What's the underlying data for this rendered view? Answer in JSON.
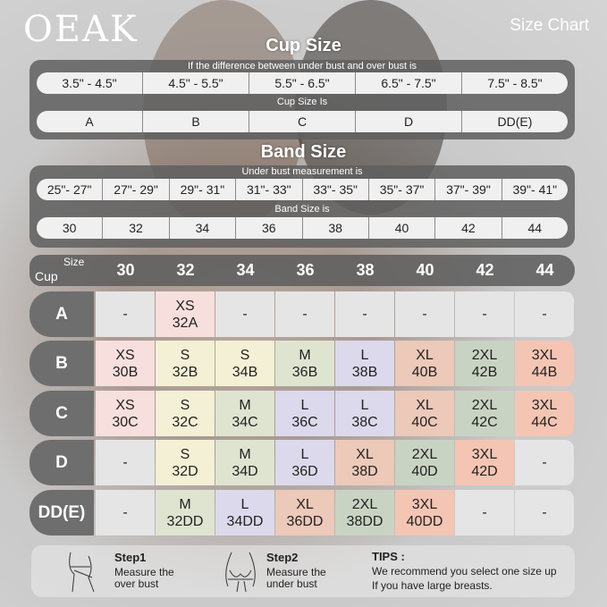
{
  "brand": "OEAK",
  "header_title": "Size Chart",
  "cup_section": {
    "title": "Cup Size",
    "difference_label": "If the  difference between under bust and over bust is",
    "differences": [
      "3.5\" -  4.5\"",
      "4.5\" -  5.5\"",
      "5.5\" -  6.5\"",
      "6.5\" -  7.5\"",
      "7.5\" -  8.5\""
    ],
    "cup_label": "Cup Size Is",
    "cups": [
      "A",
      "B",
      "C",
      "D",
      "DD(E)"
    ]
  },
  "band_section": {
    "title": "Band Size",
    "measurement_label": "Under bust measurement is",
    "measurements": [
      "25\"- 27\"",
      "27\"- 29\"",
      "29\"- 31\"",
      "31\"- 33\"",
      "33\"- 35\"",
      "35\"- 37\"",
      "37\"- 39\"",
      "39\"- 41\""
    ],
    "band_label": "Band Size is",
    "bands": [
      "30",
      "32",
      "34",
      "36",
      "38",
      "40",
      "42",
      "44"
    ]
  },
  "grid": {
    "corner_size": "Size",
    "corner_cup": "Cup",
    "columns": [
      "30",
      "32",
      "34",
      "36",
      "38",
      "40",
      "42",
      "44"
    ],
    "colors": {
      "XS": "#f6dfdd",
      "S": "#f4f0d5",
      "M": "#dfe4d1",
      "L": "#dcd9ec",
      "XL": "#ecc9b8",
      "2XL": "#c9d3c3",
      "3XL": "#f4c5b3",
      "-": "#e5e5e5"
    },
    "rows": [
      {
        "cup": "A",
        "cells": [
          [
            "-",
            ""
          ],
          [
            "XS",
            "32A"
          ],
          [
            "-",
            ""
          ],
          [
            "-",
            ""
          ],
          [
            "-",
            ""
          ],
          [
            "-",
            ""
          ],
          [
            "-",
            ""
          ],
          [
            "-",
            ""
          ]
        ]
      },
      {
        "cup": "B",
        "cells": [
          [
            "XS",
            "30B"
          ],
          [
            "S",
            "32B"
          ],
          [
            "S",
            "34B"
          ],
          [
            "M",
            "36B"
          ],
          [
            "L",
            "38B"
          ],
          [
            "XL",
            "40B"
          ],
          [
            "2XL",
            "42B"
          ],
          [
            "3XL",
            "44B"
          ]
        ]
      },
      {
        "cup": "C",
        "cells": [
          [
            "XS",
            "30C"
          ],
          [
            "S",
            "32C"
          ],
          [
            "M",
            "34C"
          ],
          [
            "L",
            "36C"
          ],
          [
            "L",
            "38C"
          ],
          [
            "XL",
            "40C"
          ],
          [
            "2XL",
            "42C"
          ],
          [
            "3XL",
            "44C"
          ]
        ]
      },
      {
        "cup": "D",
        "cells": [
          [
            "-",
            ""
          ],
          [
            "S",
            "32D"
          ],
          [
            "M",
            "34D"
          ],
          [
            "L",
            "36D"
          ],
          [
            "XL",
            "38D"
          ],
          [
            "2XL",
            "40D"
          ],
          [
            "3XL",
            "42D"
          ],
          [
            "-",
            ""
          ]
        ]
      },
      {
        "cup": "DD(E)",
        "cells": [
          [
            "-",
            ""
          ],
          [
            "M",
            "32DD"
          ],
          [
            "L",
            "34DD"
          ],
          [
            "XL",
            "36DD"
          ],
          [
            "2XL",
            "38DD"
          ],
          [
            "3XL",
            "40DD"
          ],
          [
            "-",
            ""
          ],
          [
            "-",
            ""
          ]
        ]
      }
    ]
  },
  "steps": [
    {
      "title": "Step1",
      "text1": "Measure the",
      "text2": "over bust",
      "icon": "over-bust-measure-icon"
    },
    {
      "title": "Step2",
      "text1": "Measure the",
      "text2": "under bust",
      "icon": "under-bust-measure-icon"
    }
  ],
  "tips": {
    "title": "TIPS :",
    "line1": "We recommend you select one size up",
    "line2": "If you have large breasts."
  }
}
